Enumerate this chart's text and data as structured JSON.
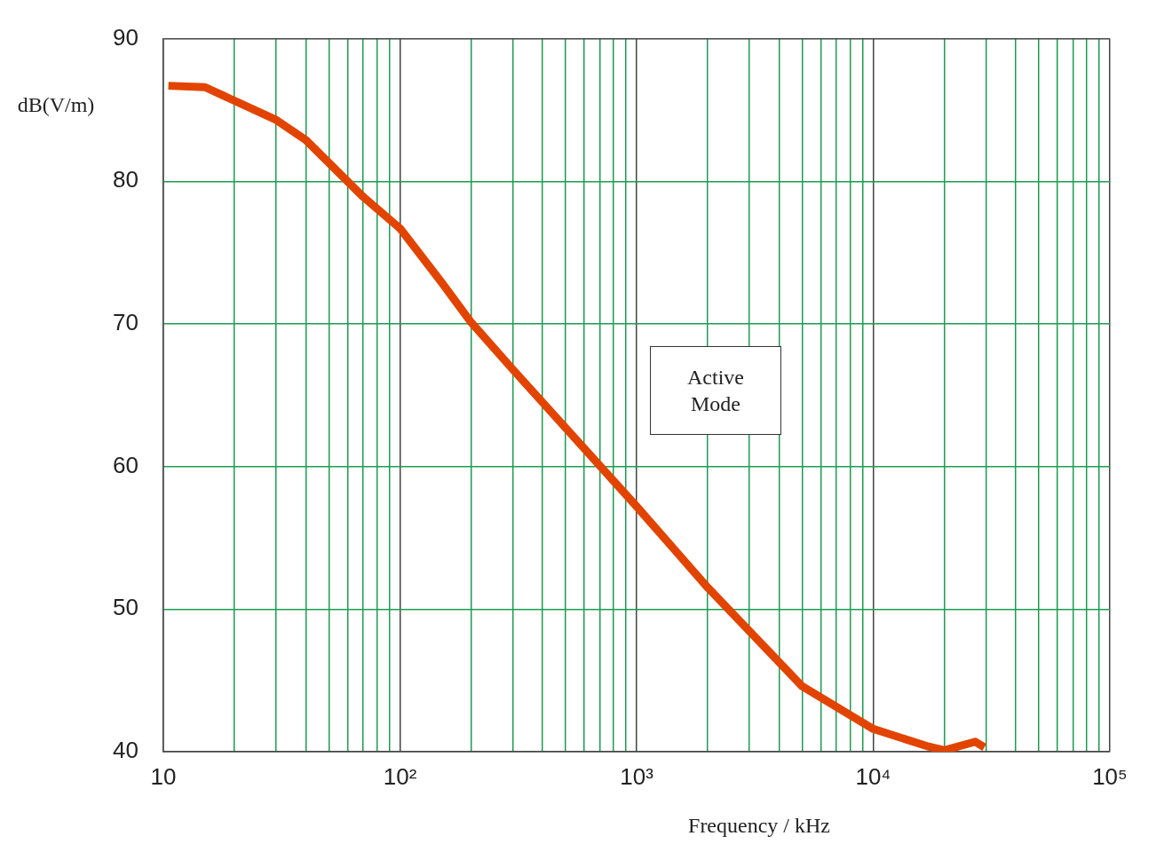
{
  "chart_data": {
    "type": "line",
    "xlabel": "Frequency / kHz",
    "ylabel": "dB(V/m)",
    "log": "x",
    "annotations": [
      "Active\nMode"
    ],
    "series": [
      {
        "color": "#e24400",
        "x": [
          10.5,
          15,
          30,
          40,
          70,
          100,
          150,
          200,
          300,
          1000,
          2000,
          5000,
          10000,
          16800,
          20000,
          27000,
          29500
        ],
        "values": [
          86.7,
          86.6,
          84.3,
          82.9,
          78.9,
          76.7,
          72.9,
          70.1,
          66.8,
          57.2,
          51.5,
          44.6,
          41.6,
          40.4,
          40.1,
          40.7,
          40.3
        ]
      }
    ],
    "xlim": [
      10,
      100000
    ],
    "ylim": [
      40,
      90
    ],
    "xticks": [
      {
        "value": 10,
        "label": "10"
      },
      {
        "value": 20,
        "label": null
      },
      {
        "value": 30,
        "label": null
      },
      {
        "value": 40,
        "label": null
      },
      {
        "value": 50,
        "label": null
      },
      {
        "value": 60,
        "label": null
      },
      {
        "value": 70,
        "label": null
      },
      {
        "value": 80,
        "label": null
      },
      {
        "value": 90,
        "label": null
      },
      {
        "value": 100,
        "label": "10²"
      },
      {
        "value": 200,
        "label": null
      },
      {
        "value": 300,
        "label": null
      },
      {
        "value": 400,
        "label": null
      },
      {
        "value": 500,
        "label": null
      },
      {
        "value": 600,
        "label": null
      },
      {
        "value": 700,
        "label": null
      },
      {
        "value": 800,
        "label": null
      },
      {
        "value": 900,
        "label": null
      },
      {
        "value": 1000,
        "label": "10³"
      },
      {
        "value": 2000,
        "label": null
      },
      {
        "value": 3000,
        "label": null
      },
      {
        "value": 4000,
        "label": null
      },
      {
        "value": 5000,
        "label": null
      },
      {
        "value": 6000,
        "label": null
      },
      {
        "value": 7000,
        "label": null
      },
      {
        "value": 8000,
        "label": null
      },
      {
        "value": 9000,
        "label": null
      },
      {
        "value": 10000,
        "label": "10⁴"
      },
      {
        "value": 20000,
        "label": null
      },
      {
        "value": 30000,
        "label": null
      },
      {
        "value": 40000,
        "label": null
      },
      {
        "value": 50000,
        "label": null
      },
      {
        "value": 60000,
        "label": null
      },
      {
        "value": 70000,
        "label": null
      },
      {
        "value": 80000,
        "label": null
      },
      {
        "value": 90000,
        "label": null
      },
      {
        "value": 100000,
        "label": "10⁵"
      }
    ],
    "yticks": [
      40,
      50,
      60,
      70,
      80,
      90
    ],
    "grid": true,
    "legend": false,
    "marker": "none",
    "line_style": "solid"
  }
}
